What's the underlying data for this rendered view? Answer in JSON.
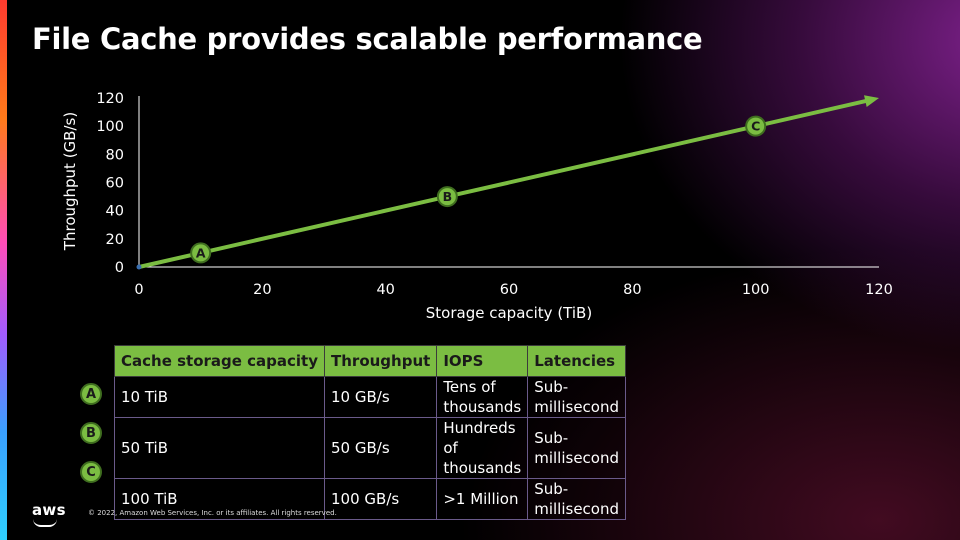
{
  "slide": {
    "title": "File Cache provides scalable performance",
    "copyright": "© 2022, Amazon Web Services, Inc. or its affiliates. All rights reserved.",
    "logo_text": "aws"
  },
  "colors": {
    "accent": "#7bbd42",
    "background": "#000000",
    "text": "#ffffff"
  },
  "chart_data": {
    "type": "line",
    "title": "",
    "xlabel": "Storage capacity (TiB)",
    "ylabel": "Throughput (GB/s)",
    "xlim": [
      0,
      120
    ],
    "ylim": [
      0,
      120
    ],
    "x_ticks": [
      0,
      20,
      40,
      60,
      80,
      100,
      120
    ],
    "y_ticks": [
      0,
      20,
      40,
      60,
      80,
      100,
      120
    ],
    "grid": false,
    "series": [
      {
        "x": [
          0,
          10,
          50,
          100,
          120
        ],
        "y": [
          0,
          10,
          50,
          100,
          120
        ]
      }
    ],
    "annotations": [
      {
        "label": "A",
        "x": 10,
        "y": 10
      },
      {
        "label": "B",
        "x": 50,
        "y": 50
      },
      {
        "label": "C",
        "x": 100,
        "y": 100
      }
    ]
  },
  "table": {
    "headers": [
      "Cache storage capacity",
      "Throughput",
      "IOPS",
      "Latencies"
    ],
    "rows": [
      {
        "marker": "A",
        "cells": [
          "10 TiB",
          "10 GB/s",
          "Tens of thousands",
          "Sub-millisecond"
        ]
      },
      {
        "marker": "B",
        "cells": [
          "50 TiB",
          "50 GB/s",
          "Hundreds of thousands",
          "Sub-millisecond"
        ]
      },
      {
        "marker": "C",
        "cells": [
          "100 TiB",
          "100 GB/s",
          ">1 Million",
          "Sub-millisecond"
        ]
      }
    ]
  }
}
